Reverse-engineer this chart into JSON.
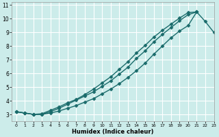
{
  "xlabel": "Humidex (Indice chaleur)",
  "ylabel": "",
  "xlim": [
    -0.5,
    23
  ],
  "ylim": [
    2.5,
    11.2
  ],
  "yticks": [
    3,
    4,
    5,
    6,
    7,
    8,
    9,
    10,
    11
  ],
  "xticks": [
    0,
    1,
    2,
    3,
    4,
    5,
    6,
    7,
    8,
    9,
    10,
    11,
    12,
    13,
    14,
    15,
    16,
    17,
    18,
    19,
    20,
    21,
    22,
    23
  ],
  "bg_color": "#ccecea",
  "grid_color": "#b0d8d5",
  "line_color": "#1a6b6b",
  "line1_x": [
    0,
    1,
    2,
    3,
    4,
    5,
    6,
    7,
    8,
    9,
    10,
    11,
    12,
    13,
    14,
    15,
    16,
    17,
    18,
    19,
    20,
    21
  ],
  "line1_y": [
    3.2,
    3.1,
    3.0,
    3.05,
    3.3,
    3.55,
    3.85,
    4.1,
    4.45,
    4.85,
    5.3,
    5.75,
    6.3,
    6.85,
    7.5,
    8.05,
    8.65,
    9.15,
    9.6,
    10.05,
    10.45,
    10.5
  ],
  "line2_x": [
    0,
    1,
    2,
    3,
    4,
    5,
    6,
    7,
    8,
    9,
    10,
    11,
    12,
    13,
    14,
    15,
    16,
    17,
    18,
    19,
    20,
    21
  ],
  "line2_y": [
    3.2,
    3.1,
    3.0,
    3.0,
    3.2,
    3.45,
    3.75,
    4.05,
    4.35,
    4.65,
    5.05,
    5.45,
    5.95,
    6.45,
    7.1,
    7.65,
    8.3,
    8.85,
    9.35,
    9.85,
    10.3,
    10.5
  ],
  "line3_x": [
    0,
    1,
    2,
    3,
    4,
    5,
    6,
    7,
    8,
    9,
    10,
    11,
    12,
    13,
    14,
    15,
    16,
    17,
    18,
    19,
    20,
    21,
    22,
    23
  ],
  "line3_y": [
    3.2,
    3.1,
    3.0,
    3.0,
    3.1,
    3.25,
    3.45,
    3.65,
    3.9,
    4.15,
    4.5,
    4.85,
    5.25,
    5.7,
    6.2,
    6.75,
    7.4,
    8.0,
    8.6,
    9.1,
    9.5,
    10.5,
    9.8,
    9.0
  ],
  "marker": "D",
  "markersize": 2.5,
  "linewidth": 1.0
}
